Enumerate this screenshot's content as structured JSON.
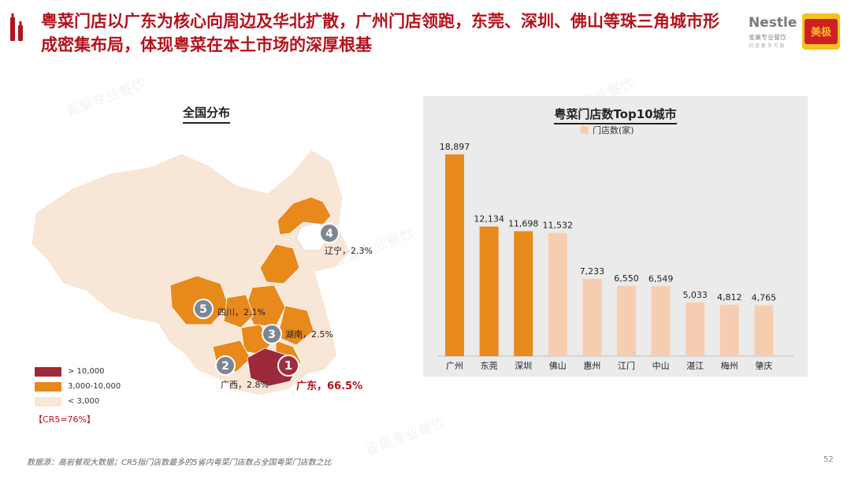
{
  "title": "粤菜门店以广东为核心向周边及华北扩散，广州门店领跑，东莞、深圳、佛山等珠三角城市形成密集布局，体现粤菜在本土市场的深厚根基",
  "logo": {
    "brand1": "Nestle",
    "brand1_sub": "雀巢专业餐饮",
    "brand2": "美极"
  },
  "map": {
    "title": "全国分布",
    "legend": [
      {
        "label": "> 10,000",
        "color": "#9c2a3a"
      },
      {
        "label": "3,000-10,000",
        "color": "#e8891c"
      },
      {
        "label": "< 3,000",
        "color": "#f8e6d6"
      }
    ],
    "cr5": "【CR5=76%】",
    "markers": [
      {
        "num": "1",
        "label": "广东，66.5%"
      },
      {
        "num": "2",
        "label": "广西，2.8%"
      },
      {
        "num": "3",
        "label": "湖南，2.5%"
      },
      {
        "num": "4",
        "label": "辽宁，2.3%"
      },
      {
        "num": "5",
        "label": "四川，2.1%"
      }
    ]
  },
  "chart_data": {
    "type": "bar",
    "title": "粤菜门店数Top10城市",
    "legend": "门店数(家)",
    "categories": [
      "广州",
      "东莞",
      "深圳",
      "佛山",
      "惠州",
      "江门",
      "中山",
      "湛江",
      "梅州",
      "肇庆"
    ],
    "values": [
      18897,
      12134,
      11698,
      11532,
      7233,
      6550,
      6549,
      5033,
      4812,
      4765
    ],
    "value_labels": [
      "18,897",
      "12,134",
      "11,698",
      "11,532",
      "7,233",
      "6,550",
      "6,549",
      "5,033",
      "4,812",
      "4,765"
    ],
    "colors": [
      "#e8891c",
      "#e8891c",
      "#e8891c",
      "#f7cdb1",
      "#f7cdb1",
      "#f7cdb1",
      "#f7cdb1",
      "#f7cdb1",
      "#f7cdb1",
      "#f7cdb1"
    ],
    "ylim": [
      0,
      20000
    ],
    "grid": false
  },
  "footer": "数据源：高岩餐观大数据；CR5指门店数最多的5省内粤菜门店数占全国粤菜门店数之比",
  "page_number": "52"
}
